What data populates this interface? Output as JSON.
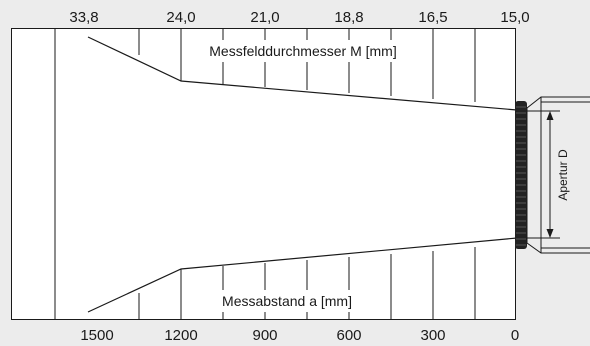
{
  "top_scale": {
    "caption": "Messfelddurchmesser M [mm]",
    "labels": [
      "33,8",
      "24,0",
      "21,0",
      "18,8",
      "16,5",
      "15,0"
    ]
  },
  "bottom_scale": {
    "caption": "Messabstand a [mm]",
    "labels": [
      "1500",
      "1200",
      "900",
      "600",
      "300",
      "0"
    ]
  },
  "aperture": {
    "label": "Apertur D"
  },
  "colors": {
    "background": "#ececec",
    "ink": "#1a1a1a",
    "lens": "#222222"
  }
}
